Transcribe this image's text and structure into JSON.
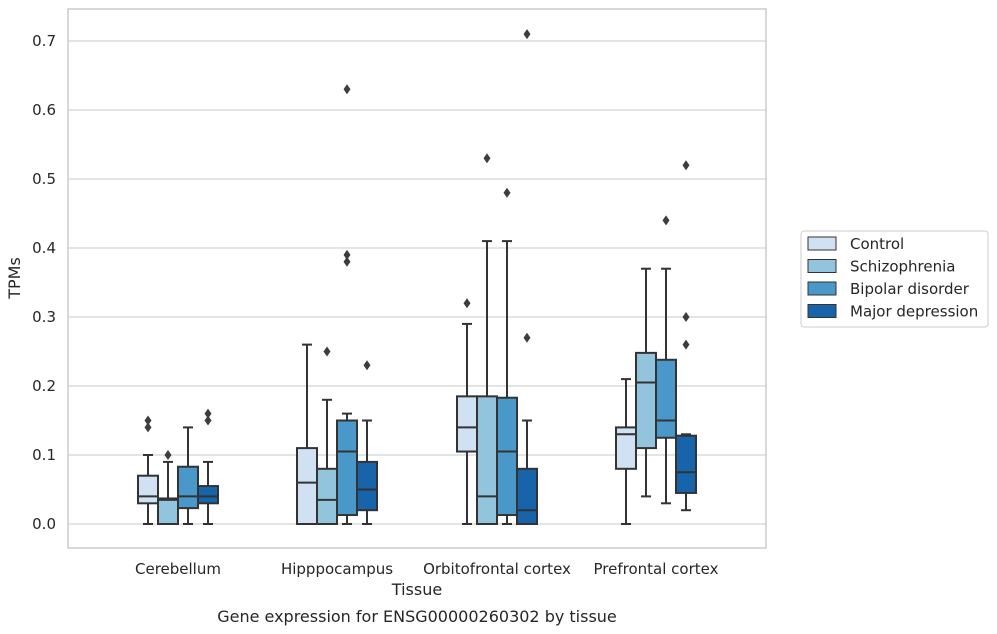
{
  "caption": "Gene expression for ENSG00000260302 by tissue",
  "colors": {
    "Control": "#cfe1f2",
    "Schizophrenia": "#93c4de",
    "Bipolar disorder": "#4a98c9",
    "Major depression": "#1764ab",
    "box_edge": "#333333",
    "grid": "#d3d3d3",
    "frame": "#cccccc"
  },
  "chart_data": {
    "type": "box",
    "title": "",
    "xlabel": "Tissue",
    "ylabel": "TPMs",
    "ylim": [
      -0.035,
      0.745
    ],
    "yticks": [
      0.0,
      0.1,
      0.2,
      0.3,
      0.4,
      0.5,
      0.6,
      0.7
    ],
    "ytick_labels": [
      "0.0",
      "0.1",
      "0.2",
      "0.3",
      "0.4",
      "0.5",
      "0.6",
      "0.7"
    ],
    "grid": "horizontal",
    "legend_position": "right-outside",
    "categories": [
      "Cerebellum",
      "Hipppocampus",
      "Orbitofrontal cortex",
      "Prefrontal cortex"
    ],
    "series": [
      {
        "name": "Control",
        "boxes": [
          {
            "whislo": 0.0,
            "q1": 0.03,
            "med": 0.04,
            "q3": 0.07,
            "whishi": 0.1,
            "fliers": [
              0.14,
              0.15
            ]
          },
          {
            "whislo": 0.0,
            "q1": 0.0,
            "med": 0.06,
            "q3": 0.11,
            "whishi": 0.26,
            "fliers": []
          },
          {
            "whislo": 0.0,
            "q1": 0.105,
            "med": 0.14,
            "q3": 0.185,
            "whishi": 0.29,
            "fliers": [
              0.32
            ]
          },
          {
            "whislo": 0.0,
            "q1": 0.08,
            "med": 0.13,
            "q3": 0.14,
            "whishi": 0.21,
            "fliers": []
          }
        ]
      },
      {
        "name": "Schizophrenia",
        "boxes": [
          {
            "whislo": 0.0,
            "q1": 0.0,
            "med": 0.035,
            "q3": 0.037,
            "whishi": 0.09,
            "fliers": [
              0.1
            ]
          },
          {
            "whislo": 0.0,
            "q1": 0.0,
            "med": 0.035,
            "q3": 0.08,
            "whishi": 0.18,
            "fliers": [
              0.25
            ]
          },
          {
            "whislo": 0.0,
            "q1": 0.0,
            "med": 0.04,
            "q3": 0.185,
            "whishi": 0.41,
            "fliers": [
              0.53
            ]
          },
          {
            "whislo": 0.04,
            "q1": 0.11,
            "med": 0.205,
            "q3": 0.248,
            "whishi": 0.37,
            "fliers": []
          }
        ]
      },
      {
        "name": "Bipolar disorder",
        "boxes": [
          {
            "whislo": 0.0,
            "q1": 0.023,
            "med": 0.04,
            "q3": 0.083,
            "whishi": 0.14,
            "fliers": []
          },
          {
            "whislo": 0.0,
            "q1": 0.013,
            "med": 0.105,
            "q3": 0.15,
            "whishi": 0.16,
            "fliers": [
              0.38,
              0.39,
              0.63
            ]
          },
          {
            "whislo": 0.0,
            "q1": 0.013,
            "med": 0.105,
            "q3": 0.183,
            "whishi": 0.41,
            "fliers": [
              0.48
            ]
          },
          {
            "whislo": 0.03,
            "q1": 0.125,
            "med": 0.15,
            "q3": 0.238,
            "whishi": 0.37,
            "fliers": [
              0.44
            ]
          }
        ]
      },
      {
        "name": "Major depression",
        "boxes": [
          {
            "whislo": 0.0,
            "q1": 0.03,
            "med": 0.04,
            "q3": 0.055,
            "whishi": 0.09,
            "fliers": [
              0.15,
              0.16
            ]
          },
          {
            "whislo": 0.0,
            "q1": 0.02,
            "med": 0.05,
            "q3": 0.09,
            "whishi": 0.15,
            "fliers": [
              0.23
            ]
          },
          {
            "whislo": 0.0,
            "q1": 0.0,
            "med": 0.02,
            "q3": 0.08,
            "whishi": 0.15,
            "fliers": [
              0.27,
              0.71
            ]
          },
          {
            "whislo": 0.02,
            "q1": 0.045,
            "med": 0.075,
            "q3": 0.128,
            "whishi": 0.13,
            "fliers": [
              0.26,
              0.3,
              0.52
            ]
          }
        ]
      }
    ]
  }
}
